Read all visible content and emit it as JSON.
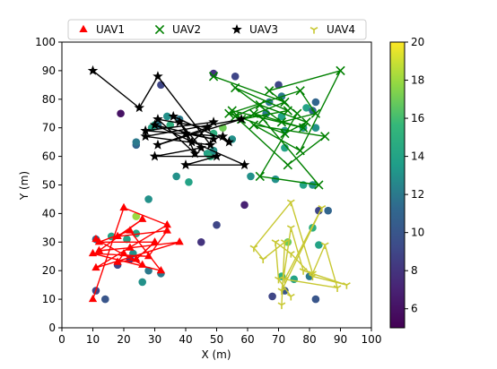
{
  "chart_data": {
    "type": "scatter",
    "xlabel": "X (m)",
    "ylabel": "Y (m)",
    "xlim": [
      0,
      100
    ],
    "ylim": [
      0,
      100
    ],
    "xticks": [
      "0",
      "10",
      "20",
      "30",
      "40",
      "50",
      "60",
      "70",
      "80",
      "90",
      "100"
    ],
    "yticks": [
      "0",
      "10",
      "20",
      "30",
      "40",
      "50",
      "60",
      "70",
      "80",
      "90",
      "100"
    ],
    "legend_position": "top",
    "colorbar": {
      "range": [
        5,
        20
      ],
      "ticks": [
        "6",
        "8",
        "10",
        "12",
        "14",
        "16",
        "18",
        "20"
      ],
      "colormap": "viridis"
    },
    "series": [
      {
        "name": "UAV1",
        "marker": "triangle",
        "color": "#ff0000",
        "points": [
          [
            10,
            10
          ],
          [
            20,
            42
          ],
          [
            34,
            36
          ],
          [
            11,
            21
          ],
          [
            38,
            30
          ],
          [
            22,
            28
          ],
          [
            12,
            27
          ],
          [
            26,
            38
          ],
          [
            18,
            32
          ],
          [
            34,
            34
          ],
          [
            28,
            25
          ],
          [
            10,
            26
          ],
          [
            32,
            20
          ],
          [
            22,
            34
          ],
          [
            12,
            30
          ],
          [
            30,
            30
          ],
          [
            24,
            24
          ],
          [
            18,
            23
          ],
          [
            20,
            26
          ],
          [
            26,
            22
          ],
          [
            11,
            31
          ]
        ]
      },
      {
        "name": "UAV2",
        "marker": "x",
        "color": "#008000",
        "points": [
          [
            49,
            88
          ],
          [
            72,
            79
          ],
          [
            58,
            73
          ],
          [
            73,
            76
          ],
          [
            56,
            84
          ],
          [
            71,
            72
          ],
          [
            82,
            75
          ],
          [
            77,
            83
          ],
          [
            54,
            75
          ],
          [
            72,
            68
          ],
          [
            79,
            72
          ],
          [
            64,
            78
          ],
          [
            56,
            74
          ],
          [
            73,
            57
          ],
          [
            85,
            67
          ],
          [
            62,
            71
          ],
          [
            77,
            62
          ],
          [
            90,
            90
          ],
          [
            67,
            83
          ],
          [
            76,
            75
          ],
          [
            64,
            53
          ],
          [
            83,
            50
          ],
          [
            65,
            73
          ],
          [
            62,
            75
          ],
          [
            78,
            70
          ],
          [
            55,
            76
          ]
        ]
      },
      {
        "name": "UAV3",
        "marker": "star",
        "color": "#000000",
        "points": [
          [
            10,
            90
          ],
          [
            25,
            77
          ],
          [
            31,
            88
          ],
          [
            48,
            64
          ],
          [
            27,
            67
          ],
          [
            58,
            73
          ],
          [
            31,
            64
          ],
          [
            47,
            70
          ],
          [
            31,
            73
          ],
          [
            43,
            61
          ],
          [
            40,
            68
          ],
          [
            49,
            66
          ],
          [
            30,
            71
          ],
          [
            59,
            57
          ],
          [
            40,
            57
          ],
          [
            50,
            60
          ],
          [
            30,
            60
          ],
          [
            45,
            63
          ],
          [
            38,
            72
          ],
          [
            42,
            65
          ],
          [
            49,
            72
          ],
          [
            27,
            69
          ],
          [
            52,
            67
          ],
          [
            54,
            65
          ],
          [
            36,
            74
          ]
        ]
      },
      {
        "name": "UAV4",
        "marker": "tri_down",
        "color": "#c8c832",
        "points": [
          [
            71,
            8
          ],
          [
            72,
            30
          ],
          [
            65,
            24
          ],
          [
            62,
            28
          ],
          [
            74,
            44
          ],
          [
            81,
            19
          ],
          [
            85,
            29
          ],
          [
            89,
            14
          ],
          [
            72,
            17
          ],
          [
            84,
            42
          ],
          [
            71,
            13
          ],
          [
            74,
            35
          ],
          [
            78,
            20
          ],
          [
            92,
            15
          ],
          [
            81,
            18
          ],
          [
            74,
            26
          ],
          [
            69,
            30
          ],
          [
            70,
            17
          ],
          [
            74,
            11
          ]
        ]
      }
    ],
    "users": [
      [
        49,
        89
      ],
      [
        56,
        88
      ],
      [
        32,
        85
      ],
      [
        19,
        75
      ],
      [
        24,
        64
      ],
      [
        24,
        65
      ],
      [
        35,
        71
      ],
      [
        30,
        71
      ],
      [
        34,
        74
      ],
      [
        38,
        73
      ],
      [
        31,
        71
      ],
      [
        29,
        70
      ],
      [
        49,
        68
      ],
      [
        52,
        70
      ],
      [
        47,
        61
      ],
      [
        48,
        60
      ],
      [
        49,
        62
      ],
      [
        55,
        66
      ],
      [
        61,
        53
      ],
      [
        69,
        52
      ],
      [
        66,
        75
      ],
      [
        67,
        79
      ],
      [
        70,
        85
      ],
      [
        71,
        81
      ],
      [
        72,
        63
      ],
      [
        71,
        74
      ],
      [
        72,
        69
      ],
      [
        78,
        70
      ],
      [
        79,
        77
      ],
      [
        82,
        79
      ],
      [
        82,
        70
      ],
      [
        81,
        76
      ],
      [
        78,
        50
      ],
      [
        81,
        50
      ],
      [
        59,
        43
      ],
      [
        50,
        36
      ],
      [
        45,
        30
      ],
      [
        41,
        51
      ],
      [
        37,
        53
      ],
      [
        28,
        45
      ],
      [
        24,
        39
      ],
      [
        24,
        33
      ],
      [
        23,
        26
      ],
      [
        21,
        31
      ],
      [
        22,
        24
      ],
      [
        16,
        32
      ],
      [
        18,
        22
      ],
      [
        11,
        31
      ],
      [
        11,
        13
      ],
      [
        14,
        10
      ],
      [
        28,
        20
      ],
      [
        32,
        19
      ],
      [
        26,
        16
      ],
      [
        71,
        18
      ],
      [
        72,
        13
      ],
      [
        68,
        11
      ],
      [
        73,
        30
      ],
      [
        75,
        17
      ],
      [
        80,
        18
      ],
      [
        82,
        10
      ],
      [
        83,
        29
      ],
      [
        83,
        41
      ],
      [
        86,
        41
      ],
      [
        81,
        35
      ]
    ],
    "user_values": [
      8,
      9,
      9,
      6,
      11,
      12,
      15,
      14,
      13,
      12,
      12,
      14,
      15,
      17,
      14,
      15,
      13,
      13,
      13,
      13,
      12,
      12,
      9,
      12,
      14,
      14,
      13,
      13,
      14,
      11,
      13,
      11,
      14,
      13,
      7,
      9,
      8,
      14,
      13,
      13,
      18,
      14,
      13,
      14,
      8,
      14,
      9,
      11,
      9,
      10,
      12,
      12,
      13,
      15,
      10,
      9,
      17,
      14,
      12,
      10,
      14,
      9,
      11,
      15
    ]
  }
}
